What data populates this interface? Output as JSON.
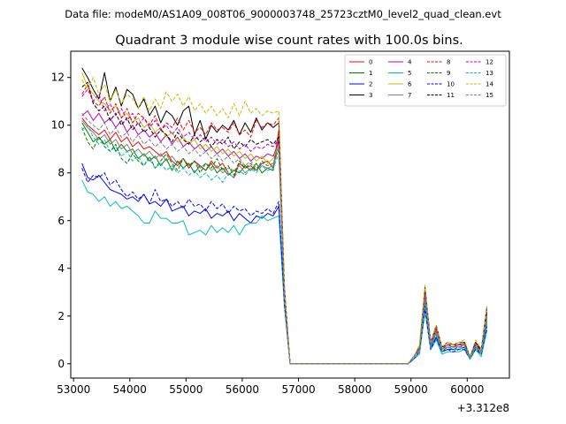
{
  "suptitle": "Data file: modeM0/AS1A09_008T06_9000003748_25723cztM0_level2_quad_clean.evt",
  "chart_data": {
    "type": "line",
    "title": "Quadrant 3 module wise count rates with 100.0s bins.",
    "xlabel": "",
    "ylabel": "",
    "x_offset_label": "+3.312e8",
    "xlim": [
      52950,
      60750
    ],
    "ylim": [
      -0.6,
      13.1
    ],
    "xticks": [
      53000,
      54000,
      55000,
      56000,
      57000,
      58000,
      59000,
      60000
    ],
    "xtick_labels": [
      "53000",
      "54000",
      "55000",
      "56000",
      "57000",
      "58000",
      "59000",
      "60000"
    ],
    "yticks": [
      0,
      2,
      4,
      6,
      8,
      10,
      12
    ],
    "ytick_labels": [
      "0",
      "2",
      "4",
      "6",
      "8",
      "10",
      "12"
    ],
    "grid": false,
    "legend_position": "upper right",
    "legend_columns": 4,
    "x": [
      53150,
      53250,
      53350,
      53450,
      53550,
      53650,
      53750,
      53850,
      53950,
      54050,
      54150,
      54250,
      54350,
      54450,
      54550,
      54650,
      54750,
      54850,
      54950,
      55050,
      55150,
      55250,
      55350,
      55450,
      55550,
      55650,
      55750,
      55850,
      55950,
      56050,
      56150,
      56250,
      56350,
      56450,
      56550,
      56650,
      56750,
      56850,
      58950,
      59050,
      59150,
      59250,
      59350,
      59450,
      59550,
      59650,
      59750,
      59850,
      59950,
      60050,
      60150,
      60250,
      60350
    ],
    "series": [
      {
        "name": "0",
        "color": "#ff0000",
        "dash": "solid",
        "values": [
          10.3,
          10.0,
          9.8,
          9.6,
          9.8,
          9.4,
          9.7,
          9.3,
          9.5,
          9.1,
          9.3,
          9.0,
          9.1,
          8.9,
          8.7,
          8.9,
          8.5,
          8.3,
          8.6,
          8.2,
          8.5,
          8.3,
          8.1,
          8.5,
          8.2,
          8.4,
          8.0,
          7.8,
          8.4,
          8.2,
          8.3,
          8.1,
          8.4,
          8.5,
          8.2,
          9.8,
          3.0,
          0.0,
          0.0,
          0.3,
          0.6,
          2.8,
          0.8,
          1.4,
          0.6,
          0.8,
          0.7,
          0.7,
          0.8,
          0.3,
          0.8,
          0.5,
          2.0
        ]
      },
      {
        "name": "1",
        "color": "#008000",
        "dash": "solid",
        "values": [
          10.1,
          9.7,
          9.3,
          9.5,
          9.2,
          9.4,
          8.9,
          9.2,
          8.9,
          9.0,
          8.6,
          8.8,
          8.5,
          8.7,
          8.3,
          8.6,
          8.1,
          8.5,
          8.2,
          8.4,
          8.0,
          8.3,
          8.1,
          8.4,
          8.0,
          8.2,
          7.9,
          8.1,
          8.0,
          8.3,
          8.1,
          8.4,
          8.0,
          8.2,
          8.1,
          9.5,
          2.9,
          0.0,
          0.0,
          0.2,
          0.5,
          2.6,
          0.7,
          1.3,
          0.5,
          0.7,
          0.6,
          0.6,
          0.7,
          0.2,
          0.7,
          0.4,
          1.8
        ]
      },
      {
        "name": "2",
        "color": "#0000ff",
        "dash": "solid",
        "values": [
          8.4,
          7.8,
          7.7,
          7.9,
          7.6,
          7.3,
          7.2,
          7.1,
          6.9,
          7.0,
          6.8,
          7.1,
          6.7,
          6.8,
          6.6,
          6.9,
          6.4,
          6.5,
          6.6,
          6.2,
          6.4,
          6.3,
          6.5,
          6.1,
          6.3,
          6.2,
          6.4,
          6.0,
          6.3,
          6.1,
          5.9,
          6.2,
          6.1,
          6.3,
          6.2,
          6.6,
          2.5,
          0.0,
          0.0,
          0.2,
          0.5,
          2.4,
          0.7,
          1.1,
          0.5,
          0.6,
          0.6,
          0.6,
          0.7,
          0.2,
          0.7,
          0.4,
          1.6
        ]
      },
      {
        "name": "3",
        "color": "#000000",
        "dash": "solid",
        "values": [
          12.4,
          12.0,
          11.5,
          11.1,
          12.2,
          11.0,
          11.6,
          10.8,
          11.5,
          11.3,
          10.7,
          11.1,
          10.4,
          10.8,
          10.1,
          10.6,
          10.4,
          10.0,
          10.6,
          10.8,
          9.6,
          10.2,
          9.4,
          10.0,
          9.7,
          10.0,
          9.8,
          10.2,
          9.6,
          10.1,
          9.7,
          10.3,
          9.8,
          10.1,
          9.9,
          10.1,
          3.1,
          0.0,
          0.0,
          0.3,
          0.7,
          3.2,
          0.9,
          1.6,
          0.7,
          0.9,
          0.8,
          0.8,
          0.9,
          0.3,
          0.9,
          0.6,
          2.4
        ]
      },
      {
        "name": "4",
        "color": "#bf00bf",
        "dash": "solid",
        "values": [
          10.4,
          10.6,
          10.2,
          10.5,
          10.1,
          10.3,
          9.9,
          10.2,
          9.7,
          10.0,
          9.6,
          9.8,
          9.5,
          9.7,
          9.3,
          9.6,
          9.2,
          9.5,
          9.1,
          9.3,
          9.0,
          9.2,
          8.9,
          9.1,
          8.8,
          9.0,
          8.7,
          8.9,
          8.6,
          8.8,
          8.5,
          8.7,
          8.6,
          8.8,
          8.7,
          9.3,
          2.8,
          0.0,
          0.0,
          0.3,
          0.6,
          2.9,
          0.8,
          1.5,
          0.6,
          0.8,
          0.7,
          0.8,
          0.8,
          0.3,
          0.8,
          0.5,
          2.1
        ]
      },
      {
        "name": "5",
        "color": "#00bfbf",
        "dash": "solid",
        "values": [
          7.7,
          7.2,
          7.1,
          6.8,
          7.0,
          6.6,
          6.8,
          6.5,
          6.6,
          6.4,
          6.2,
          5.9,
          5.9,
          6.4,
          6.1,
          6.1,
          5.9,
          5.9,
          6.0,
          5.4,
          5.5,
          5.6,
          5.4,
          5.8,
          5.5,
          5.7,
          5.5,
          5.8,
          5.4,
          5.8,
          5.9,
          5.9,
          6.2,
          6.0,
          6.1,
          6.2,
          2.4,
          0.0,
          0.0,
          0.2,
          0.4,
          2.2,
          0.6,
          1.0,
          0.4,
          0.5,
          0.5,
          0.5,
          0.6,
          0.2,
          0.6,
          0.3,
          1.4
        ]
      },
      {
        "name": "6",
        "color": "#bfbf00",
        "dash": "solid",
        "values": [
          12.2,
          11.6,
          11.3,
          11.0,
          10.9,
          10.6,
          10.8,
          10.3,
          10.5,
          10.1,
          10.3,
          9.9,
          10.1,
          9.7,
          9.9,
          9.5,
          9.7,
          9.3,
          9.5,
          9.2,
          9.4,
          9.0,
          9.2,
          8.9,
          9.1,
          8.8,
          9.0,
          8.7,
          8.9,
          8.6,
          8.8,
          8.5,
          8.7,
          8.4,
          8.6,
          9.2,
          2.9,
          0.0,
          0.0,
          0.3,
          0.7,
          3.0,
          0.8,
          1.5,
          0.7,
          0.9,
          0.8,
          0.8,
          0.9,
          0.3,
          0.9,
          0.5,
          2.2
        ]
      },
      {
        "name": "7",
        "color": "#808080",
        "dash": "solid",
        "values": [
          10.2,
          9.9,
          9.7,
          9.4,
          9.6,
          9.2,
          9.4,
          9.0,
          9.2,
          8.8,
          9.0,
          8.7,
          8.9,
          8.6,
          8.8,
          8.5,
          8.7,
          8.4,
          8.6,
          8.3,
          8.5,
          8.2,
          8.4,
          8.1,
          8.3,
          8.0,
          8.2,
          8.1,
          8.3,
          8.0,
          8.2,
          8.1,
          8.3,
          8.2,
          8.3,
          9.0,
          2.8,
          0.0,
          0.0,
          0.3,
          0.6,
          2.7,
          0.7,
          1.3,
          0.6,
          0.7,
          0.7,
          0.7,
          0.8,
          0.2,
          0.8,
          0.4,
          1.9
        ]
      },
      {
        "name": "8",
        "color": "#ff0000",
        "dash": "dashed",
        "values": [
          11.3,
          11.7,
          11.0,
          10.8,
          11.2,
          10.5,
          10.9,
          10.3,
          10.7,
          10.1,
          10.5,
          10.3,
          10.0,
          10.4,
          9.8,
          10.1,
          9.9,
          10.3,
          9.8,
          10.2,
          9.7,
          9.9,
          9.6,
          10.1,
          9.8,
          9.9,
          9.7,
          10.1,
          9.6,
          9.8,
          9.5,
          10.2,
          9.9,
          10.1,
          10.0,
          10.3,
          3.3,
          0.0,
          0.0,
          0.3,
          0.7,
          3.1,
          0.9,
          1.6,
          0.7,
          0.9,
          0.8,
          0.9,
          0.9,
          0.3,
          0.9,
          0.6,
          2.3
        ]
      },
      {
        "name": "9",
        "color": "#008000",
        "dash": "dashed",
        "values": [
          9.9,
          9.3,
          9.0,
          9.5,
          9.1,
          8.9,
          9.2,
          8.6,
          8.4,
          8.8,
          8.5,
          8.3,
          8.7,
          8.2,
          8.5,
          8.8,
          8.4,
          8.1,
          8.6,
          8.3,
          8.5,
          8.0,
          8.4,
          8.2,
          8.6,
          8.1,
          8.3,
          7.9,
          8.5,
          8.2,
          8.4,
          8.1,
          8.5,
          8.3,
          8.4,
          9.1,
          2.9,
          0.0,
          0.0,
          0.2,
          0.5,
          2.5,
          0.7,
          1.2,
          0.5,
          0.7,
          0.6,
          0.7,
          0.7,
          0.2,
          0.7,
          0.4,
          1.7
        ]
      },
      {
        "name": "10",
        "color": "#0000ff",
        "dash": "dashed",
        "values": [
          8.2,
          7.6,
          7.9,
          7.8,
          8.0,
          7.5,
          7.7,
          7.3,
          7.0,
          7.2,
          6.9,
          7.1,
          6.7,
          7.3,
          6.8,
          6.9,
          6.6,
          6.8,
          6.5,
          6.9,
          6.6,
          6.7,
          6.4,
          6.8,
          6.5,
          6.7,
          6.3,
          6.6,
          6.4,
          6.5,
          6.2,
          6.4,
          6.3,
          6.5,
          6.3,
          6.8,
          2.5,
          0.0,
          0.0,
          0.2,
          0.5,
          2.3,
          0.6,
          1.1,
          0.5,
          0.6,
          0.5,
          0.6,
          0.6,
          0.2,
          0.6,
          0.4,
          1.5
        ]
      },
      {
        "name": "11",
        "color": "#000000",
        "dash": "dashed",
        "values": [
          11.6,
          11.8,
          10.9,
          10.6,
          10.8,
          10.2,
          10.5,
          10.0,
          10.3,
          9.8,
          10.1,
          9.7,
          9.9,
          9.5,
          9.8,
          9.6,
          9.3,
          9.7,
          9.4,
          9.2,
          9.6,
          9.3,
          9.5,
          9.1,
          9.4,
          9.2,
          9.5,
          9.0,
          9.3,
          9.1,
          9.4,
          9.2,
          9.3,
          9.4,
          9.2,
          9.5,
          3.0,
          0.0,
          0.0,
          0.3,
          0.6,
          3.0,
          0.8,
          1.5,
          0.7,
          0.8,
          0.8,
          0.8,
          0.9,
          0.3,
          0.9,
          0.5,
          2.2
        ]
      },
      {
        "name": "12",
        "color": "#bf00bf",
        "dash": "dashed",
        "values": [
          11.2,
          11.5,
          11.0,
          11.3,
          10.6,
          10.9,
          10.4,
          10.7,
          10.2,
          10.5,
          10.0,
          10.3,
          9.9,
          10.2,
          9.8,
          10.0,
          9.6,
          9.9,
          9.5,
          9.7,
          9.4,
          9.6,
          9.3,
          9.5,
          9.2,
          9.4,
          9.1,
          9.3,
          9.0,
          9.2,
          8.9,
          9.1,
          9.0,
          9.2,
          9.1,
          9.4,
          2.9,
          0.0,
          0.0,
          0.3,
          0.6,
          3.0,
          0.8,
          1.5,
          0.6,
          0.8,
          0.7,
          0.8,
          0.8,
          0.3,
          0.8,
          0.5,
          2.2
        ]
      },
      {
        "name": "13",
        "color": "#00bfbf",
        "dash": "dashed",
        "values": [
          9.8,
          10.0,
          9.5,
          9.2,
          9.4,
          8.9,
          9.1,
          8.7,
          8.9,
          8.5,
          8.7,
          8.3,
          8.6,
          8.2,
          8.4,
          8.1,
          8.3,
          8.0,
          8.2,
          7.9,
          8.1,
          7.8,
          8.0,
          7.7,
          7.9,
          7.6,
          8.0,
          7.8,
          8.1,
          7.9,
          8.2,
          8.0,
          8.3,
          8.1,
          8.2,
          8.8,
          2.7,
          0.0,
          0.0,
          0.2,
          0.5,
          2.5,
          0.7,
          1.2,
          0.5,
          0.7,
          0.6,
          0.6,
          0.7,
          0.2,
          0.7,
          0.4,
          1.7
        ]
      },
      {
        "name": "14",
        "color": "#bfbf00",
        "dash": "dashed",
        "values": [
          11.9,
          11.5,
          12.0,
          11.3,
          11.7,
          11.0,
          11.5,
          10.9,
          11.3,
          11.1,
          10.7,
          11.2,
          10.6,
          11.1,
          10.7,
          11.4,
          11.0,
          11.3,
          10.8,
          11.2,
          10.6,
          10.9,
          10.5,
          10.8,
          10.4,
          10.7,
          10.3,
          10.9,
          10.4,
          11.0,
          10.5,
          10.7,
          10.4,
          10.6,
          10.5,
          10.6,
          3.2,
          0.0,
          0.0,
          0.3,
          0.8,
          3.3,
          0.9,
          1.6,
          0.7,
          0.9,
          0.8,
          0.9,
          1.0,
          0.3,
          1.0,
          0.6,
          2.4
        ]
      },
      {
        "name": "15",
        "color": "#808080",
        "dash": "dashed",
        "values": [
          10.5,
          10.2,
          10.0,
          9.8,
          10.1,
          9.6,
          9.9,
          9.5,
          9.7,
          9.3,
          9.6,
          9.2,
          9.4,
          9.1,
          9.3,
          9.0,
          9.2,
          8.9,
          9.1,
          8.8,
          9.0,
          8.7,
          8.9,
          8.6,
          8.8,
          8.5,
          8.7,
          8.4,
          8.6,
          8.3,
          8.5,
          8.2,
          8.4,
          8.3,
          8.4,
          9.1,
          2.8,
          0.0,
          0.0,
          0.3,
          0.6,
          2.8,
          0.8,
          1.4,
          0.6,
          0.8,
          0.7,
          0.7,
          0.8,
          0.3,
          0.8,
          0.5,
          2.0
        ]
      }
    ]
  }
}
